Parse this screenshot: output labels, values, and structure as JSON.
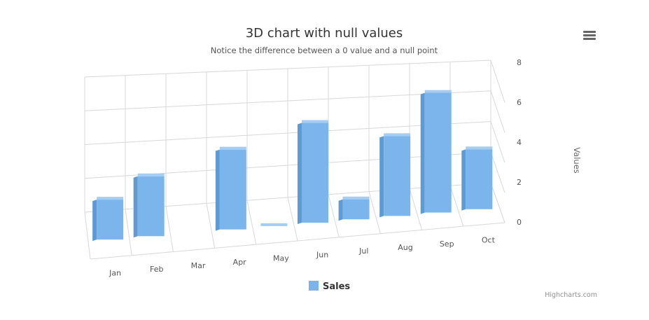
{
  "chart_data": {
    "type": "bar",
    "title": "3D chart with null values",
    "subtitle": "Notice the difference between a 0 value and a null point",
    "categories": [
      "Jan",
      "Feb",
      "Mar",
      "Apr",
      "May",
      "Jun",
      "Jul",
      "Aug",
      "Sep",
      "Oct"
    ],
    "series": [
      {
        "name": "Sales",
        "values": [
          2,
          3,
          null,
          4,
          0,
          5,
          1,
          4,
          6,
          3
        ]
      }
    ],
    "ylabel": "Values",
    "ylim": [
      0,
      8
    ],
    "yticks": [
      0,
      2,
      4,
      6,
      8
    ],
    "grid": true,
    "legend": "bottom-center",
    "bar_color": "#7cb5ec"
  },
  "menu_icon": "hamburger-menu-icon",
  "credits": "Highcharts.com"
}
